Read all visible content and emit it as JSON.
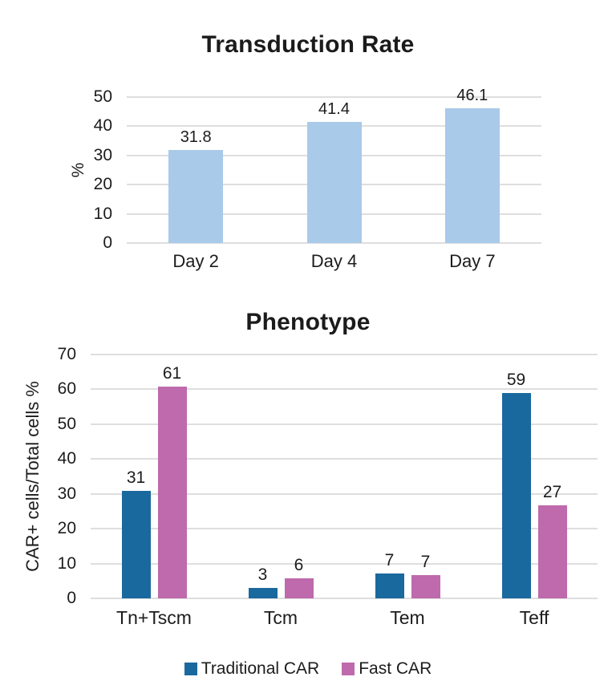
{
  "background_color": "#ffffff",
  "text_color": "#1c1c1c",
  "grid_color": "#dedede",
  "chart_data": [
    {
      "type": "bar",
      "title": "Transduction Rate",
      "ylabel": "%",
      "xlabel": "",
      "categories": [
        "Day 2",
        "Day 4",
        "Day 7"
      ],
      "values": [
        31.8,
        41.4,
        46.1
      ],
      "value_labels": [
        "31.8",
        "41.4",
        "46.1"
      ],
      "bar_color": "#A9CAE9",
      "ylim": [
        0,
        50
      ],
      "ytick_step": 10,
      "yticks": [
        0,
        10,
        20,
        30,
        40,
        50
      ],
      "grid": "on",
      "legend_position": "none"
    },
    {
      "type": "grouped-bar",
      "title": "Phenotype",
      "ylabel": "CAR+ cells/Total cells %",
      "xlabel": "",
      "categories": [
        "Tn+Tscm",
        "Tcm",
        "Tem",
        "Teff"
      ],
      "series": [
        {
          "name": "Traditional CAR",
          "color": "#1A699E",
          "values": [
            30.9,
            2.9,
            7.1,
            59
          ],
          "value_labels": [
            "31",
            "3",
            "7",
            "59"
          ]
        },
        {
          "name": "Fast CAR",
          "color": "#BE6AAC",
          "values": [
            60.8,
            5.7,
            6.7,
            26.8
          ],
          "value_labels": [
            "61",
            "6",
            "7",
            "27"
          ]
        }
      ],
      "ylim": [
        0,
        70
      ],
      "ytick_step": 10,
      "yticks": [
        0,
        10,
        20,
        30,
        40,
        50,
        60,
        70
      ],
      "grid": "on",
      "legend_position": "bottom"
    }
  ]
}
